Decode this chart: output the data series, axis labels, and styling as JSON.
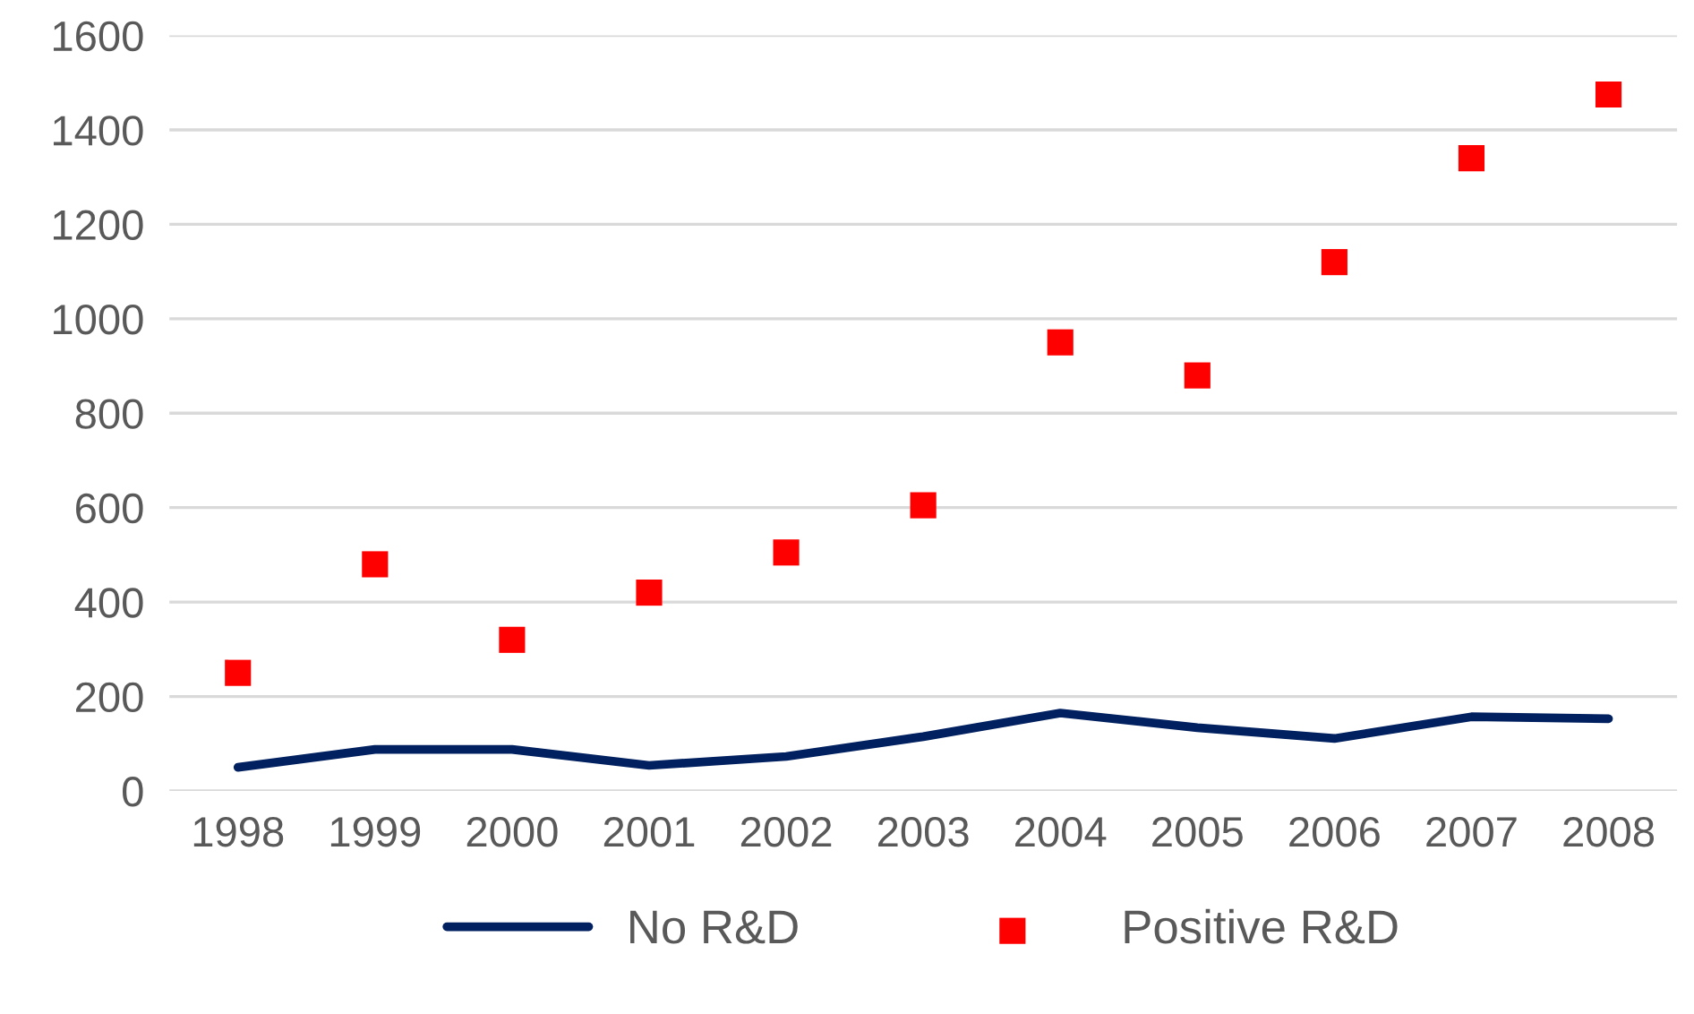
{
  "chart_data": {
    "type": "line",
    "categories": [
      "1998",
      "1999",
      "2000",
      "2001",
      "2002",
      "2003",
      "2004",
      "2005",
      "2006",
      "2007",
      "2008"
    ],
    "series": [
      {
        "name": "No R&D",
        "color": "#002060",
        "marker": "none",
        "line_style": "solid",
        "values": [
          50,
          88,
          88,
          54,
          73,
          115,
          165,
          134,
          111,
          157,
          153
        ]
      },
      {
        "name": "Positive R&D",
        "type": "scatter",
        "color": "#ff0000",
        "marker": "square",
        "values": [
          250,
          480,
          320,
          420,
          505,
          605,
          950,
          880,
          1120,
          1340,
          1475
        ]
      }
    ],
    "ylim": [
      0,
      1600
    ],
    "yticks": [
      0,
      200,
      400,
      600,
      800,
      1000,
      1200,
      1400,
      1600
    ],
    "grid": "y",
    "legend": "bottom"
  }
}
